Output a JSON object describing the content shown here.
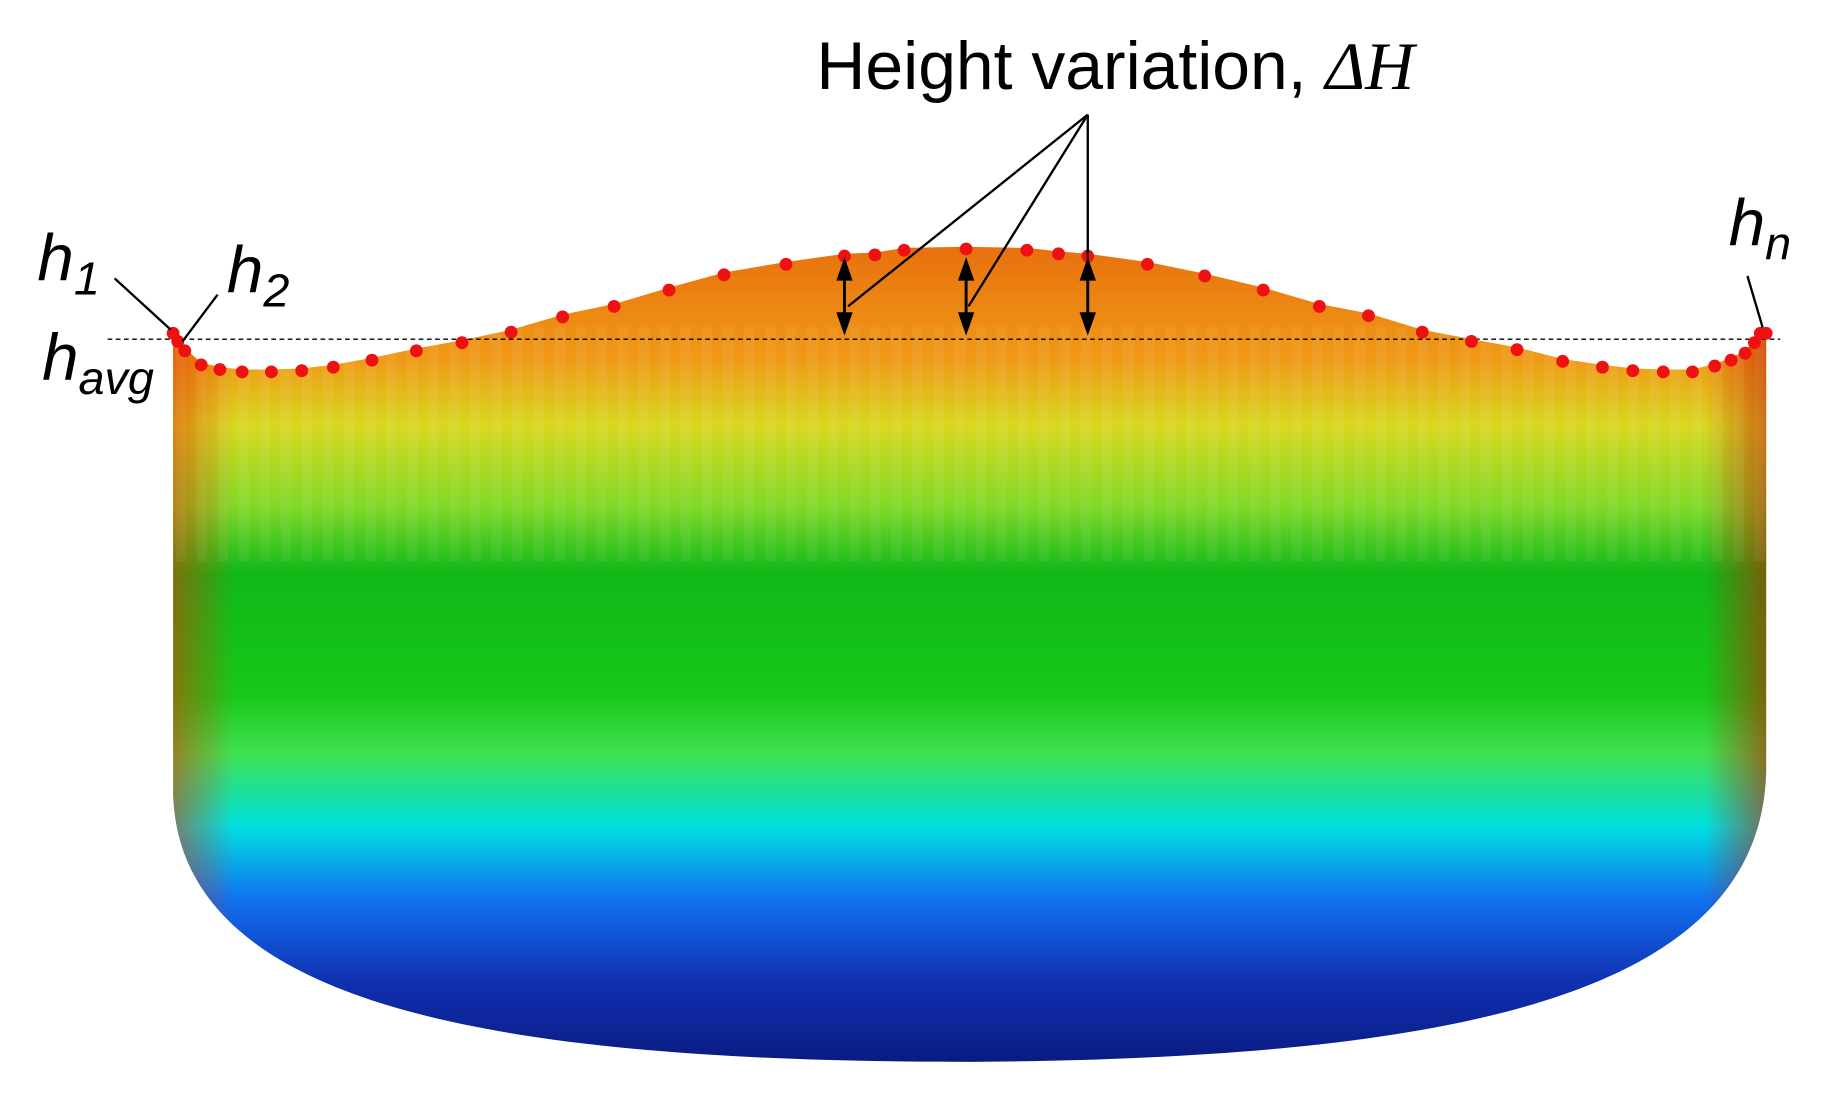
{
  "annotation": {
    "text": "Height variation, ",
    "symbol": "ΔH"
  },
  "labels": [
    {
      "main": "h",
      "sub": "1"
    },
    {
      "main": "h",
      "sub": "2"
    },
    {
      "main": "h",
      "sub": "n"
    },
    {
      "main": "h",
      "sub": "avg"
    }
  ]
}
